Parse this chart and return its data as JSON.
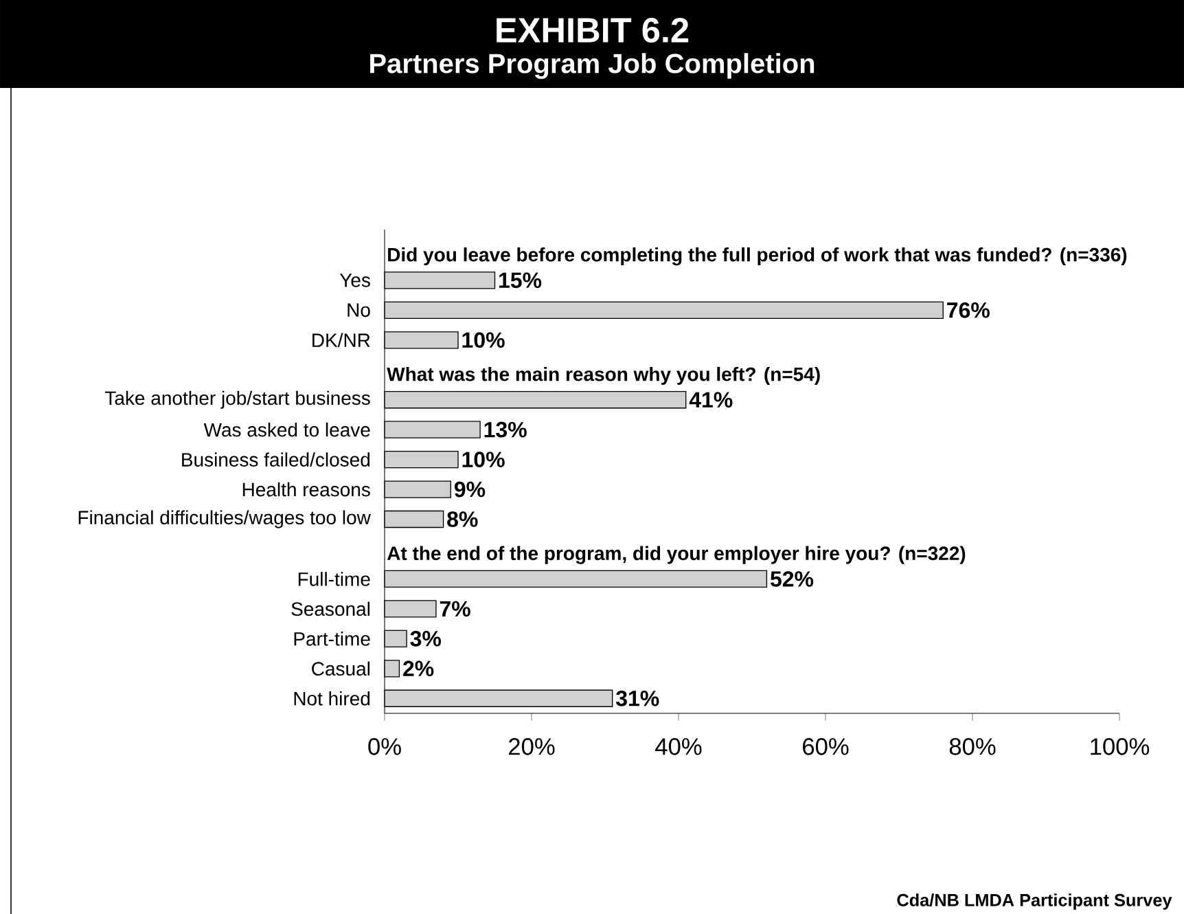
{
  "chart_data": {
    "type": "bar",
    "orientation": "horizontal",
    "title": "EXHIBIT 6.2",
    "subtitle": "Partners Program Job Completion",
    "categories": [
      null,
      "Yes",
      "No",
      "DK/NR",
      null,
      "Take another job/start business",
      "Was asked to leave",
      "Business failed/closed",
      "Health reasons",
      "Financial difficulties/wages too low",
      null,
      "Full-time",
      "Seasonal",
      "Part-time",
      "Casual",
      "Not hired"
    ],
    "values": [
      null,
      15,
      76,
      10,
      null,
      41,
      13,
      10,
      9,
      8,
      null,
      52,
      7,
      3,
      2,
      31
    ],
    "value_labels": [
      null,
      "15%",
      "76%",
      "10%",
      null,
      "41%",
      "13%",
      "10%",
      "9%",
      "8%",
      null,
      "52%",
      "7%",
      "3%",
      "2%",
      "31%"
    ],
    "color": "#d0d0d0",
    "xlim": [
      0,
      100
    ],
    "xticks": [
      {
        "value": 0,
        "label": "0%"
      },
      {
        "value": 20,
        "label": "20%"
      },
      {
        "value": 40,
        "label": "40%"
      },
      {
        "value": 60,
        "label": "60%"
      },
      {
        "value": 80,
        "label": "80%"
      },
      {
        "value": 100,
        "label": "100%"
      }
    ],
    "grid": false,
    "annotations": [
      "Did you leave before completing the full period of work that was funded? (n=336)",
      "What was the main reason why you left? (n=54)",
      "At the end of the program, did your employer hire you? (n=322)",
      "Cda/NB LMDA Participant Survey"
    ]
  }
}
